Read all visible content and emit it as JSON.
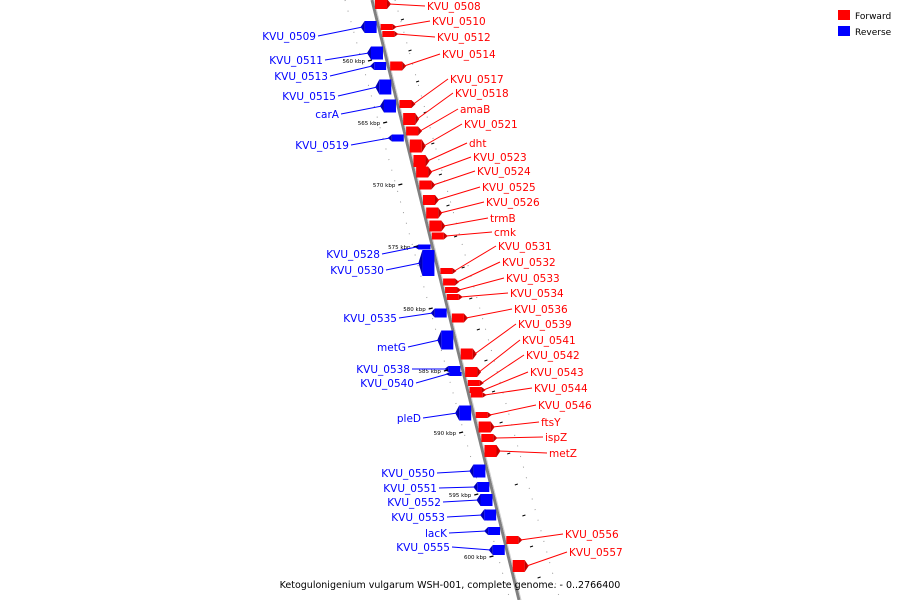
{
  "legend": {
    "forward": "Forward",
    "reverse": "Reverse"
  },
  "colors": {
    "forward": "#ff0000",
    "reverse": "#0000ff",
    "backbone": "#808080"
  },
  "caption": "Ketogulonigenium vulgarum WSH-001, complete genome. - 0..2766400",
  "kbp_markers": [
    "560 kbp",
    "565 kbp",
    "570 kbp",
    "575 kbp",
    "580 kbp",
    "585 kbp",
    "590 kbp",
    "595 kbp",
    "600 kbp"
  ],
  "forward_labels": [
    "KVU_0508",
    "KVU_0510",
    "KVU_0512",
    "KVU_0514",
    "KVU_0517",
    "KVU_0518",
    "amaB",
    "KVU_0521",
    "dht",
    "KVU_0523",
    "KVU_0524",
    "KVU_0525",
    "KVU_0526",
    "trmB",
    "cmk",
    "KVU_0531",
    "KVU_0532",
    "KVU_0533",
    "KVU_0534",
    "KVU_0536",
    "KVU_0539",
    "KVU_0541",
    "KVU_0542",
    "KVU_0543",
    "KVU_0544",
    "KVU_0546",
    "ftsY",
    "ispZ",
    "metZ",
    "KVU_0556",
    "KVU_0557"
  ],
  "reverse_labels": [
    "KVU_0509",
    "KVU_0511",
    "KVU_0513",
    "KVU_0515",
    "carA",
    "KVU_0519",
    "KVU_0528",
    "KVU_0530",
    "KVU_0535",
    "metG",
    "KVU_0538",
    "KVU_0540",
    "pleD",
    "KVU_0550",
    "KVU_0551",
    "KVU_0552",
    "KVU_0553",
    "lacK",
    "KVU_0555"
  ]
}
